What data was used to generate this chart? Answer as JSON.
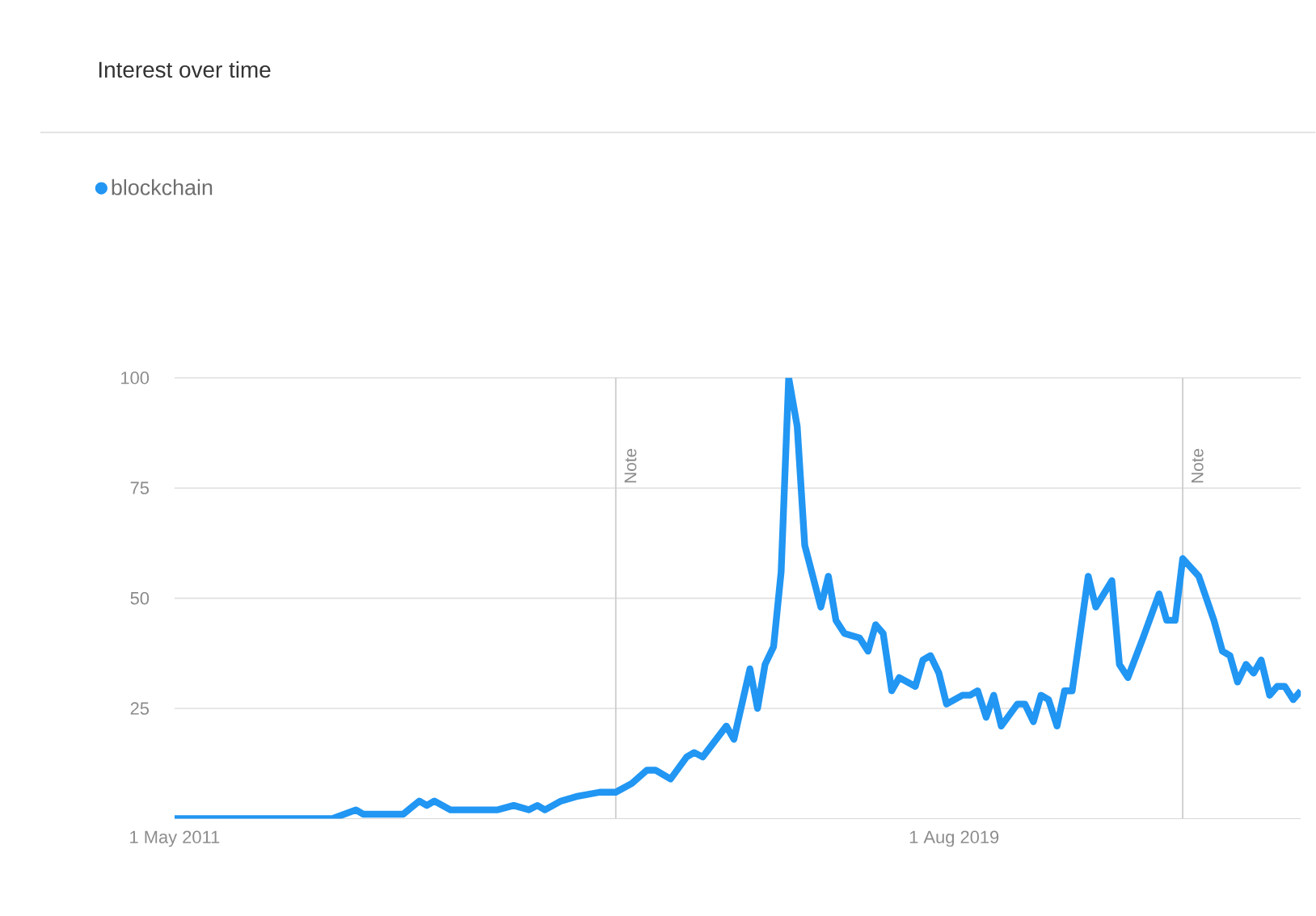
{
  "chart_data": {
    "type": "line",
    "title": "Interest over time",
    "x": [
      "2011-05",
      "2013-01",
      "2013-04",
      "2013-05",
      "2013-10",
      "2013-12",
      "2014-01",
      "2014-02",
      "2014-04",
      "2014-10",
      "2014-12",
      "2015-02",
      "2015-03",
      "2015-04",
      "2015-06",
      "2015-08",
      "2015-11",
      "2016-01",
      "2016-03",
      "2016-05",
      "2016-06",
      "2016-08",
      "2016-10",
      "2016-11",
      "2016-12",
      "2017-03",
      "2017-04",
      "2017-06",
      "2017-07",
      "2017-08",
      "2017-09",
      "2017-10",
      "2017-11",
      "2017-12",
      "2018-01",
      "2018-03",
      "2018-04",
      "2018-05",
      "2018-06",
      "2018-08",
      "2018-09",
      "2018-10",
      "2018-11",
      "2018-12",
      "2019-01",
      "2019-03",
      "2019-04",
      "2019-05",
      "2019-06",
      "2019-07",
      "2019-09",
      "2019-10",
      "2019-11",
      "2019-12",
      "2020-01",
      "2020-02",
      "2020-04",
      "2020-05",
      "2020-06",
      "2020-07",
      "2020-08",
      "2020-09",
      "2020-10",
      "2020-11",
      "2021-01",
      "2021-02",
      "2021-04",
      "2021-05",
      "2021-06",
      "2021-08",
      "2021-10",
      "2021-11",
      "2021-12",
      "2022-01",
      "2022-03",
      "2022-05",
      "2022-06",
      "2022-07",
      "2022-08",
      "2022-09",
      "2022-10",
      "2022-11",
      "2022-12",
      "2023-01",
      "2023-02",
      "2023-03",
      "2023-04"
    ],
    "series": [
      {
        "name": "blockchain",
        "color": "#2196f3",
        "values": [
          0,
          0,
          2,
          1,
          1,
          4,
          3,
          4,
          2,
          2,
          3,
          2,
          3,
          2,
          4,
          5,
          6,
          6,
          8,
          11,
          11,
          9,
          14,
          15,
          14,
          21,
          18,
          34,
          25,
          35,
          39,
          56,
          100,
          89,
          62,
          48,
          55,
          45,
          42,
          41,
          38,
          44,
          42,
          29,
          32,
          30,
          36,
          37,
          33,
          26,
          28,
          28,
          29,
          23,
          28,
          21,
          26,
          26,
          22,
          28,
          27,
          21,
          29,
          29,
          55,
          48,
          54,
          35,
          32,
          41,
          51,
          45,
          45,
          59,
          55,
          45,
          38,
          37,
          31,
          35,
          33,
          36,
          28,
          30,
          30,
          27,
          29
        ]
      }
    ],
    "xlim": [
      "2011-05",
      "2023-04"
    ],
    "xticks": [
      {
        "value": "2011-05",
        "label": "1 May 2011"
      },
      {
        "value": "2019-08",
        "label": "1 Aug 2019"
      }
    ],
    "ylim": [
      0,
      100
    ],
    "yticks": [
      25,
      50,
      75,
      100
    ],
    "grid": "y",
    "legend": "top left",
    "line_style": "solid",
    "ref_lines": [
      {
        "axis": "x",
        "value": "2016-01",
        "label": "Note",
        "color": "#cccccc"
      },
      {
        "axis": "x",
        "value": "2022-01",
        "label": "Note",
        "color": "#cccccc"
      }
    ]
  }
}
